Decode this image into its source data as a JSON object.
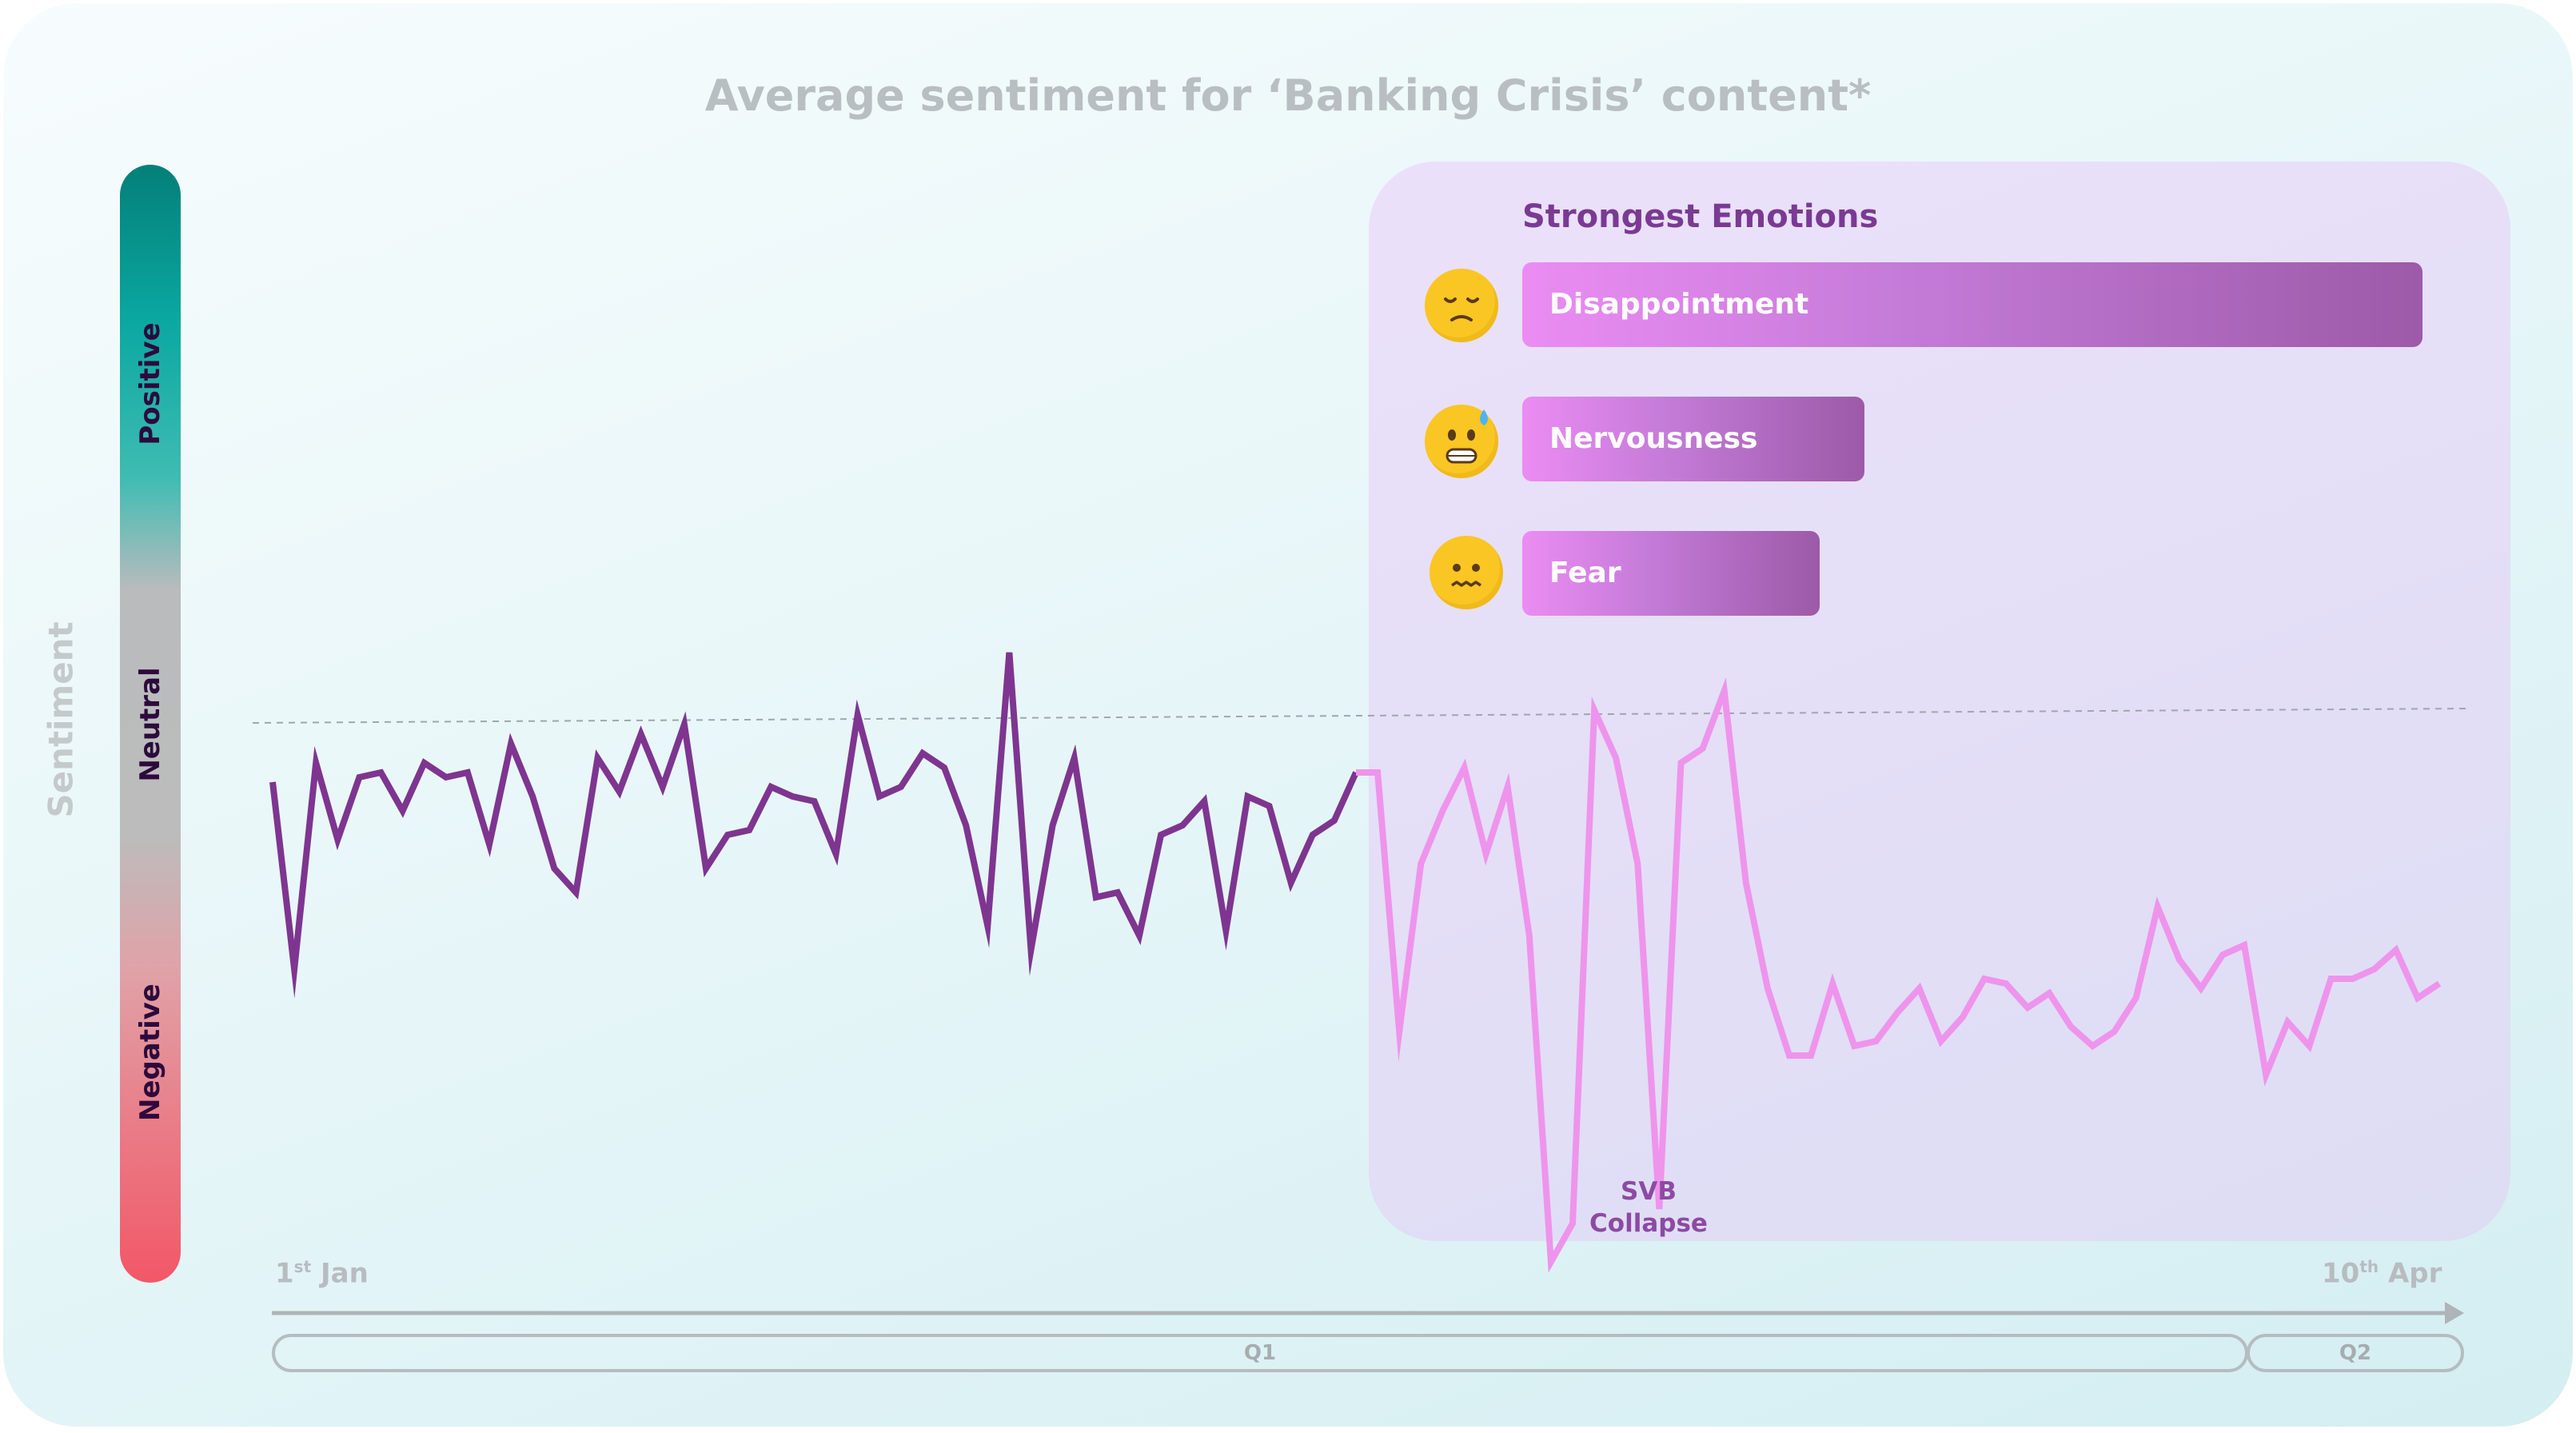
{
  "chart_data": {
    "type": "line",
    "title": "Average sentiment for ‘Banking Crisis’ content*",
    "ylabel": "Sentiment",
    "scale_labels": [
      "Positive",
      "Neutral",
      "Negative"
    ],
    "x_start_label": {
      "num": "1",
      "sup": "st",
      "text": " Jan"
    },
    "x_end_label": {
      "num": "10",
      "sup": "th",
      "text": " Apr"
    },
    "periods": [
      "Q1",
      "Q2"
    ],
    "reference_line": 0,
    "ylim": [
      -1,
      1
    ],
    "annotation": {
      "line1": "SVB",
      "line2": "Collapse"
    },
    "series": [
      {
        "color": "#7e3590",
        "values": [
          -0.13,
          -0.52,
          -0.09,
          -0.25,
          -0.12,
          -0.11,
          -0.19,
          -0.09,
          -0.12,
          -0.11,
          -0.26,
          -0.05,
          -0.16,
          -0.31,
          -0.36,
          -0.08,
          -0.15,
          -0.03,
          -0.14,
          -0.01,
          -0.31,
          -0.24,
          -0.23,
          -0.14,
          -0.16,
          -0.17,
          -0.28,
          0.01,
          -0.16,
          -0.14,
          -0.07,
          -0.1,
          -0.22,
          -0.43,
          0.14,
          -0.48,
          -0.22,
          -0.08,
          -0.37,
          -0.36,
          -0.45,
          -0.24,
          -0.22,
          -0.17,
          -0.44,
          -0.16,
          -0.18,
          -0.34,
          -0.24,
          -0.21,
          -0.11
        ]
      },
      {
        "color": "#ee94ec",
        "values": [
          -0.11,
          -0.65,
          -0.3,
          -0.19,
          -0.1,
          -0.28,
          -0.14,
          -0.45,
          -1.13,
          -1.05,
          0.02,
          -0.08,
          -0.3,
          -1.02,
          -0.09,
          -0.06,
          0.06,
          -0.34,
          -0.56,
          -0.7,
          -0.7,
          -0.55,
          -0.68,
          -0.67,
          -0.61,
          -0.56,
          -0.67,
          -0.62,
          -0.54,
          -0.55,
          -0.6,
          -0.57,
          -0.64,
          -0.68,
          -0.65,
          -0.58,
          -0.39,
          -0.5,
          -0.56,
          -0.49,
          -0.47,
          -0.74,
          -0.63,
          -0.68,
          -0.54,
          -0.54,
          -0.52,
          -0.48,
          -0.58,
          -0.55
        ]
      }
    ]
  },
  "emotions": {
    "title": "Strongest Emotions",
    "items": [
      {
        "label": "Disappointment",
        "value": 1.0,
        "icon": "pensive-face-icon"
      },
      {
        "label": "Nervousness",
        "value": 0.38,
        "icon": "anxious-sweat-face-icon"
      },
      {
        "label": "Fear",
        "value": 0.33,
        "icon": "worried-face-icon"
      }
    ]
  }
}
